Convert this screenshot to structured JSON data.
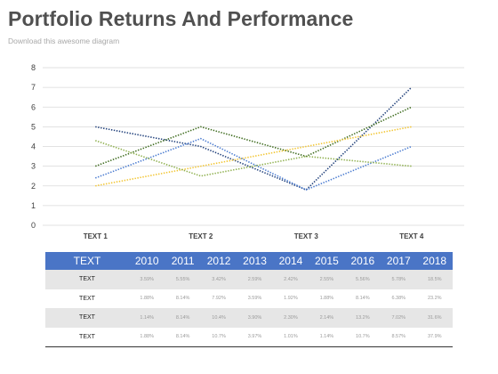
{
  "title": "Portfolio Returns And Performance",
  "subtitle": "Download this awesome diagram",
  "colors": {
    "header_bg": "#4a75c6",
    "row_shade": "#e6e6e6"
  },
  "chart_data": {
    "type": "line",
    "categories": [
      "TEXT 1",
      "TEXT 2",
      "TEXT 3",
      "TEXT 4"
    ],
    "ylim": [
      0,
      8
    ],
    "yticks": [
      0,
      1,
      2,
      3,
      4,
      5,
      6,
      7,
      8
    ],
    "grid": true,
    "line_style": "dotted",
    "series": [
      {
        "color": "#1f3f7a",
        "values": [
          5.0,
          4.0,
          1.8,
          7.0
        ]
      },
      {
        "color": "#3e6b1e",
        "values": [
          3.0,
          5.0,
          3.5,
          6.0
        ]
      },
      {
        "color": "#f2c531",
        "values": [
          2.0,
          3.0,
          4.0,
          5.0
        ]
      },
      {
        "color": "#4a7bd0",
        "values": [
          2.4,
          4.4,
          1.8,
          4.0
        ]
      },
      {
        "color": "#8fb04f",
        "values": [
          4.3,
          2.5,
          3.5,
          3.0
        ]
      }
    ]
  },
  "table": {
    "header_label": "TEXT",
    "years": [
      "2010",
      "2011",
      "2012",
      "2013",
      "2014",
      "2015",
      "2016",
      "2017",
      "2018"
    ],
    "rows": [
      {
        "label": "TEXT",
        "values": [
          "3.59%",
          "5.55%",
          "3.42%",
          "2.59%",
          "2.42%",
          "2.55%",
          "5.56%",
          "5.78%",
          "18.5%"
        ]
      },
      {
        "label": "TEXT",
        "values": [
          "1.88%",
          "8.14%",
          "7.92%",
          "3.59%",
          "1.92%",
          "1.88%",
          "8.14%",
          "6.38%",
          "23.2%"
        ]
      },
      {
        "label": "TEXT",
        "values": [
          "1.14%",
          "8.14%",
          "10.4%",
          "3.90%",
          "2.30%",
          "2.14%",
          "13.2%",
          "7.02%",
          "31.6%"
        ]
      },
      {
        "label": "TEXT",
        "values": [
          "1.88%",
          "8.14%",
          "10.7%",
          "3.97%",
          "1.01%",
          "1.14%",
          "10.7%",
          "8.57%",
          "37.9%"
        ]
      }
    ]
  }
}
